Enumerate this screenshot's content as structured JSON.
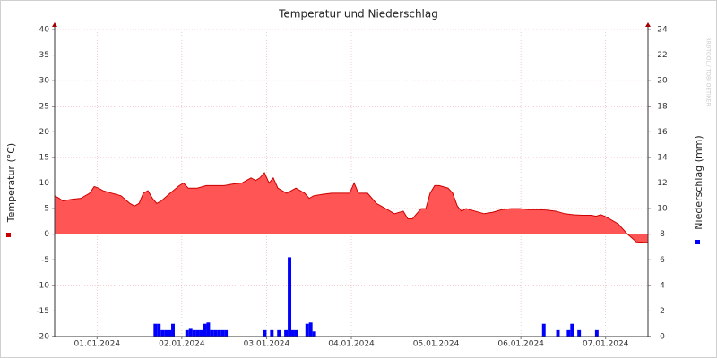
{
  "chart_data": {
    "type": "area-bar",
    "title": "Temperatur und Niederschlag",
    "watermark": "RRDTOOL / TOBI OETIKER",
    "xlim": [
      0,
      168
    ],
    "xticks": [
      {
        "value": 12,
        "label": "01.01.2024"
      },
      {
        "value": 36,
        "label": "02.01.2024"
      },
      {
        "value": 60,
        "label": "03.01.2024"
      },
      {
        "value": 84,
        "label": "04.01.2024"
      },
      {
        "value": 108,
        "label": "05.01.2024"
      },
      {
        "value": 132,
        "label": "06.01.2024"
      },
      {
        "value": 156,
        "label": "07.01.2024"
      }
    ],
    "ylim": [
      -20,
      40
    ],
    "yticks": [
      -20,
      -15,
      -10,
      -5,
      0,
      5,
      10,
      15,
      20,
      25,
      30,
      35,
      40
    ],
    "y2lim": [
      0,
      24
    ],
    "y2ticks": [
      0,
      2,
      4,
      6,
      8,
      10,
      12,
      14,
      16,
      18,
      20,
      22,
      24
    ],
    "grid": true,
    "series": [
      {
        "name": "Temperatur (°C)",
        "color": "#ff5555",
        "line_color": "#cc0000",
        "kind": "area",
        "x": [
          0,
          1.3,
          2.3,
          4.8,
          7.4,
          9.9,
          11.2,
          12.4,
          13.7,
          16.2,
          18.8,
          21.3,
          22.6,
          23.9,
          25.1,
          26.4,
          27.7,
          28.9,
          30.2,
          32.7,
          35.3,
          36.5,
          37.8,
          40.4,
          42.9,
          45.4,
          48,
          50.5,
          53,
          55.6,
          56.9,
          58.1,
          59.4,
          60.7,
          61.9,
          63.2,
          65.7,
          68.3,
          70.8,
          72.1,
          73.3,
          75.9,
          78.4,
          81,
          83.5,
          84.8,
          86,
          88.6,
          91.1,
          93.7,
          96.2,
          98.7,
          100,
          101.3,
          102.5,
          103.8,
          105.1,
          106.3,
          107.6,
          108.9,
          111.4,
          112.7,
          114,
          115.2,
          116.5,
          119,
          121.6,
          124.1,
          126.6,
          129.2,
          131.7,
          134.3,
          136.8,
          139.3,
          141.9,
          144.4,
          147,
          149.5,
          152,
          153.3,
          154.6,
          155.8,
          157.1,
          159.6,
          162.2,
          164.7,
          167.3,
          168
        ],
        "values": [
          7.5,
          7,
          6.5,
          6.8,
          7,
          8,
          9.3,
          9,
          8.5,
          8,
          7.5,
          6,
          5.5,
          6,
          8,
          8.5,
          7,
          6,
          6.5,
          8,
          9.5,
          10,
          9,
          9,
          9.5,
          9.5,
          9.5,
          9.8,
          10,
          11,
          10.5,
          11,
          12,
          10,
          11,
          9,
          8,
          9,
          8,
          7,
          7.5,
          7.8,
          8,
          8,
          8,
          10,
          8,
          8,
          6,
          5,
          4,
          4.5,
          3,
          3,
          4,
          5,
          5,
          8,
          9.5,
          9.5,
          9,
          8,
          5.5,
          4.5,
          5,
          4.5,
          4,
          4.3,
          4.8,
          5,
          5,
          4.8,
          4.8,
          4.7,
          4.5,
          4,
          3.8,
          3.7,
          3.7,
          3.5,
          3.8,
          3.5,
          3,
          2,
          0,
          -1.5,
          -1.6,
          -1.6
        ]
      },
      {
        "name": "Niederschlag (mm)",
        "color": "#0000ff",
        "kind": "bar",
        "axis": "y2",
        "bar_width": 1,
        "x": [
          28,
          29,
          30,
          31,
          32,
          33,
          37,
          38,
          39,
          40,
          41,
          42,
          43,
          44,
          45,
          46,
          47,
          48,
          59,
          61,
          63,
          65,
          66,
          67,
          68,
          71,
          72,
          73,
          138,
          142,
          145,
          146,
          148,
          153
        ],
        "values": [
          1.0,
          1.0,
          0.5,
          0.5,
          0.5,
          1.0,
          0.5,
          0.6,
          0.5,
          0.5,
          0.5,
          1.0,
          1.1,
          0.5,
          0.5,
          0.5,
          0.5,
          0.5,
          0.5,
          0.5,
          0.5,
          0.5,
          6.2,
          0.5,
          0.5,
          1.0,
          1.1,
          0.4,
          1.0,
          0.5,
          0.5,
          1.0,
          0.5,
          0.5
        ]
      }
    ]
  }
}
